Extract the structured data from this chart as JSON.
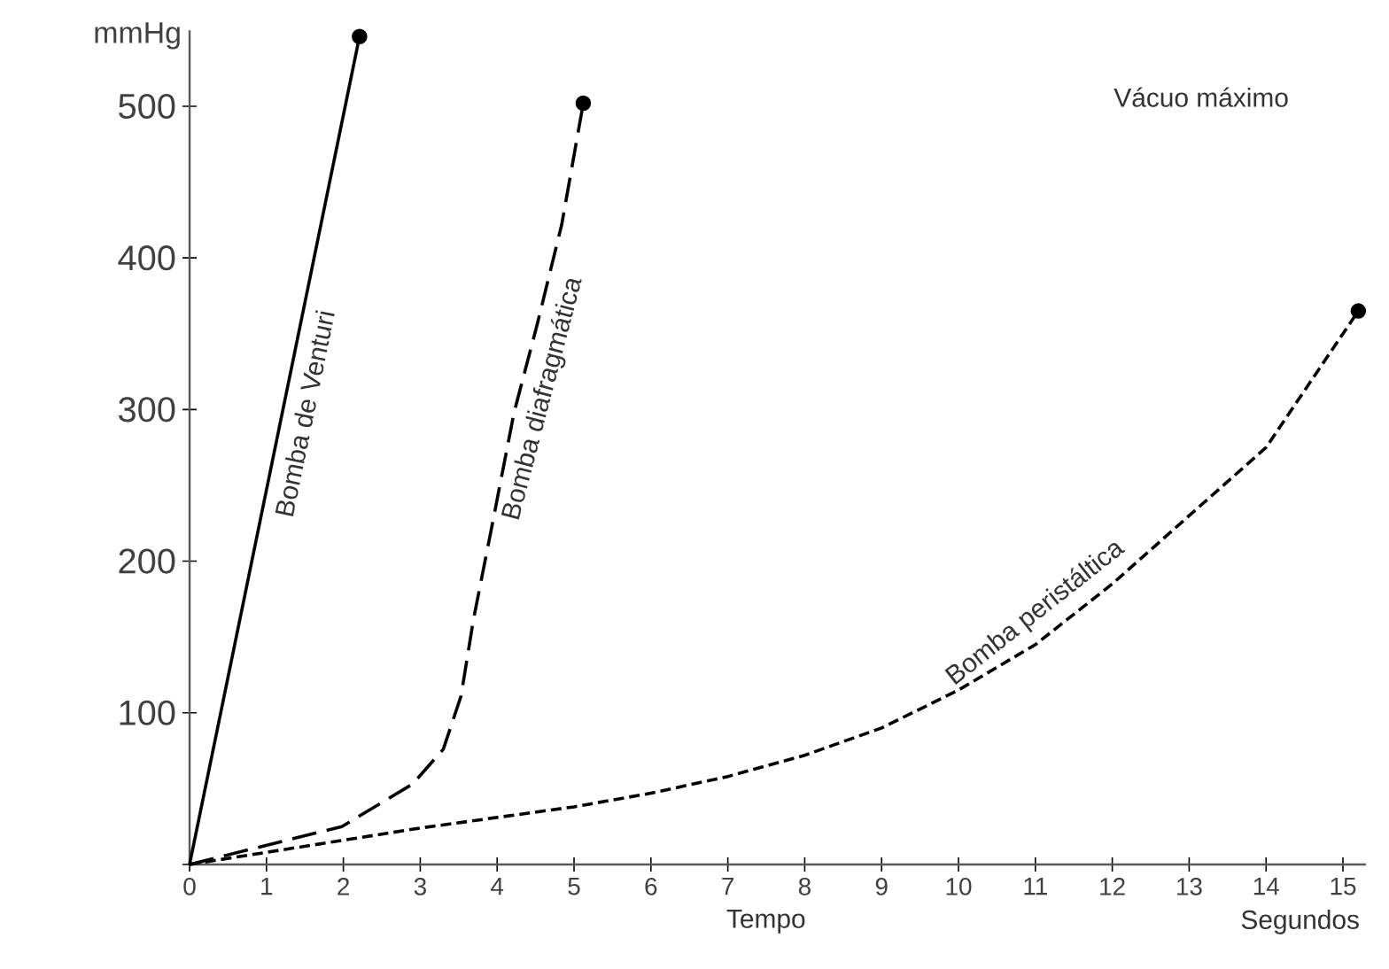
{
  "chart_data": {
    "type": "line",
    "xlabel": "Tempo",
    "ylabel": "mmHg",
    "annotations": [
      "Vácuo máximo",
      "Segundos"
    ],
    "xlim": [
      0,
      15.3
    ],
    "ylim": [
      0,
      550
    ],
    "xticks": [
      0,
      1,
      2,
      3,
      4,
      5,
      6,
      7,
      8,
      9,
      10,
      11,
      12,
      13,
      14,
      15
    ],
    "yticks": [
      {
        "value": 0,
        "label": null
      },
      100,
      200,
      300,
      400,
      500
    ],
    "grid": false,
    "legend": false,
    "series": [
      {
        "name": "Bomba de Venturi",
        "color": "#000000",
        "line_style": "solid",
        "x": [
          0,
          2.21
        ],
        "values": [
          0,
          546
        ]
      },
      {
        "name": "Bomba diafragmática",
        "color": "#000000",
        "line_style": "dashed",
        "x": [
          0,
          1.98,
          2.9,
          3.3,
          3.53,
          3.69,
          3.92,
          4.22,
          4.52,
          4.84,
          5.12
        ],
        "values": [
          0,
          25,
          53,
          76,
          111,
          161,
          220,
          298,
          356,
          422,
          502
        ]
      },
      {
        "name": "Bomba peristáltica",
        "color": "#000000",
        "line_style": "dotted",
        "x": [
          0,
          1,
          2,
          3,
          4,
          5,
          6,
          7,
          8,
          9,
          10,
          11,
          12,
          13,
          14,
          15.2
        ],
        "values": [
          0,
          8,
          16,
          24,
          31,
          38,
          47,
          58,
          72,
          90,
          115,
          145,
          185,
          230,
          275,
          365
        ]
      },
      {
        "type": "scatter",
        "marker": "circle",
        "color": "#000000",
        "x": [
          2.21,
          5.12,
          15.2
        ],
        "values": [
          546,
          502,
          365
        ]
      }
    ]
  }
}
